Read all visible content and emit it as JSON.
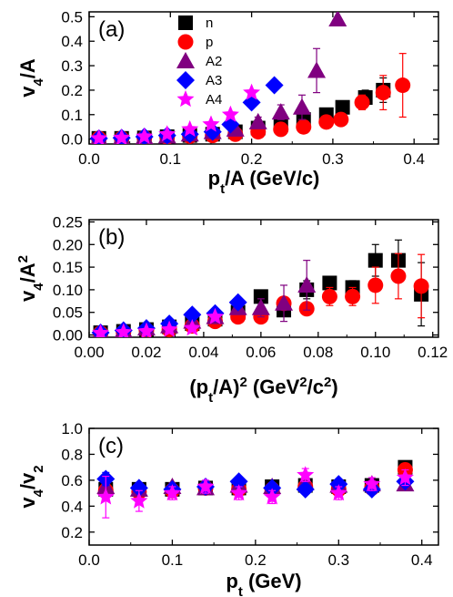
{
  "chart_data": [
    {
      "type": "scatter",
      "panel_label": "(a)",
      "ylabel": {
        "main": "v",
        "sub": "4",
        "rest": "/A"
      },
      "xlabel": {
        "main": "p",
        "sub": "t",
        "rest": "/A (GeV/c)"
      },
      "xlim": [
        0.0,
        0.43
      ],
      "ylim": [
        -0.02,
        0.52
      ],
      "xticks": [
        "0.0",
        "0.1",
        "0.2",
        "0.3",
        "0.4"
      ],
      "xtick_values": [
        0.0,
        0.1,
        0.2,
        0.3,
        0.4
      ],
      "yticks": [
        "0.0",
        "0.1",
        "0.2",
        "0.3",
        "0.4",
        "0.5"
      ],
      "ytick_values": [
        0.0,
        0.1,
        0.2,
        0.3,
        0.4,
        0.5
      ],
      "legend": [
        "n",
        "p",
        "A2",
        "A3",
        "A4"
      ],
      "legend_position": "top-center",
      "series": [
        {
          "name": "n",
          "marker": "square",
          "color": "#000000",
          "x": [
            0.012,
            0.04,
            0.068,
            0.096,
            0.124,
            0.152,
            0.18,
            0.208,
            0.236,
            0.264,
            0.292,
            0.312,
            0.34,
            0.362
          ],
          "y": [
            0.003,
            0.003,
            0.005,
            0.01,
            0.015,
            0.02,
            0.03,
            0.045,
            0.06,
            0.08,
            0.1,
            0.13,
            0.17,
            0.2
          ],
          "err": [
            0.0,
            0.0,
            0.0,
            0.0,
            0.0,
            0.0,
            0.0,
            0.0,
            0.0,
            0.01,
            0.02,
            0.02,
            0.03,
            0.05
          ]
        },
        {
          "name": "p",
          "marker": "circle",
          "color": "#ff0000",
          "x": [
            0.012,
            0.04,
            0.068,
            0.096,
            0.124,
            0.152,
            0.18,
            0.208,
            0.236,
            0.264,
            0.292,
            0.31,
            0.336,
            0.362,
            0.386
          ],
          "y": [
            0.003,
            0.003,
            0.005,
            0.008,
            0.012,
            0.015,
            0.02,
            0.03,
            0.04,
            0.05,
            0.07,
            0.08,
            0.15,
            0.19,
            0.22
          ],
          "err": [
            0.0,
            0.0,
            0.0,
            0.0,
            0.0,
            0.0,
            0.0,
            0.0,
            0.0,
            0.01,
            0.02,
            0.02,
            0.03,
            0.07,
            0.13
          ]
        },
        {
          "name": "A2",
          "marker": "triangle",
          "color": "#800080",
          "x": [
            0.012,
            0.04,
            0.068,
            0.096,
            0.124,
            0.152,
            0.18,
            0.208,
            0.236,
            0.262,
            0.28,
            0.306
          ],
          "y": [
            0.003,
            0.005,
            0.008,
            0.012,
            0.02,
            0.03,
            0.04,
            0.07,
            0.11,
            0.13,
            0.28,
            0.49
          ],
          "err": [
            0.0,
            0.0,
            0.0,
            0.0,
            0.0,
            0.0,
            0.0,
            0.02,
            0.03,
            0.05,
            0.09,
            0.0
          ]
        },
        {
          "name": "A3",
          "marker": "diamond",
          "color": "#0000ff",
          "x": [
            0.012,
            0.04,
            0.068,
            0.096,
            0.124,
            0.152,
            0.174,
            0.2,
            0.228
          ],
          "y": [
            0.003,
            0.005,
            0.01,
            0.015,
            0.02,
            0.03,
            0.06,
            0.15,
            0.22
          ],
          "err": [
            0.0,
            0.0,
            0.0,
            0.0,
            0.0,
            0.0,
            0.0,
            0.0,
            0.0
          ]
        },
        {
          "name": "A4",
          "marker": "star",
          "color": "#ff00ff",
          "x": [
            0.012,
            0.04,
            0.068,
            0.096,
            0.124,
            0.15,
            0.174,
            0.2
          ],
          "y": [
            0.003,
            0.005,
            0.01,
            0.02,
            0.04,
            0.06,
            0.1,
            0.19
          ],
          "err": [
            0.0,
            0.0,
            0.0,
            0.0,
            0.0,
            0.0,
            0.0,
            0.0
          ]
        }
      ]
    },
    {
      "type": "scatter",
      "panel_label": "(b)",
      "ylabel": {
        "main": "v",
        "sub": "4",
        "rest": "/A",
        "sup": "2"
      },
      "xlabel": {
        "pre": "(p",
        "sub": "t",
        "mid": "/A)",
        "sup": "2",
        "rest": " (GeV",
        "sup2": "2",
        "rest2": "/c",
        "sup3": "2",
        "end": ")"
      },
      "xlim": [
        0.0,
        0.122
      ],
      "ylim": [
        -0.005,
        0.255
      ],
      "xticks": [
        "0.00",
        "0.02",
        "0.04",
        "0.06",
        "0.08",
        "0.10",
        "0.12"
      ],
      "xtick_values": [
        0.0,
        0.02,
        0.04,
        0.06,
        0.08,
        0.1,
        0.12
      ],
      "yticks": [
        "0.00",
        "0.05",
        "0.10",
        "0.15",
        "0.20",
        "0.25"
      ],
      "ytick_values": [
        0.0,
        0.05,
        0.1,
        0.15,
        0.2,
        0.25
      ],
      "series": [
        {
          "name": "n",
          "marker": "square",
          "color": "#000000",
          "x": [
            0.004,
            0.012,
            0.02,
            0.028,
            0.036,
            0.044,
            0.052,
            0.06,
            0.068,
            0.076,
            0.084,
            0.092,
            0.1,
            0.108,
            0.116
          ],
          "y": [
            0.005,
            0.008,
            0.012,
            0.018,
            0.025,
            0.035,
            0.05,
            0.085,
            0.055,
            0.1,
            0.115,
            0.105,
            0.165,
            0.165,
            0.09
          ],
          "err": [
            0.0,
            0.0,
            0.0,
            0.0,
            0.0,
            0.0,
            0.0,
            0.0,
            0.01,
            0.02,
            0.01,
            0.015,
            0.035,
            0.045,
            0.07
          ]
        },
        {
          "name": "p",
          "marker": "circle",
          "color": "#ff0000",
          "x": [
            0.004,
            0.012,
            0.02,
            0.028,
            0.036,
            0.044,
            0.052,
            0.06,
            0.068,
            0.076,
            0.084,
            0.092,
            0.1,
            0.108,
            0.116
          ],
          "y": [
            0.004,
            0.006,
            0.01,
            0.012,
            0.02,
            0.03,
            0.04,
            0.04,
            0.07,
            0.058,
            0.085,
            0.085,
            0.11,
            0.13,
            0.108
          ],
          "err": [
            0.0,
            0.0,
            0.0,
            0.0,
            0.0,
            0.0,
            0.0,
            0.0,
            0.01,
            0.01,
            0.02,
            0.02,
            0.04,
            0.05,
            0.07
          ]
        },
        {
          "name": "A2",
          "marker": "triangle",
          "color": "#800080",
          "x": [
            0.004,
            0.012,
            0.02,
            0.028,
            0.036,
            0.044,
            0.052,
            0.06,
            0.068,
            0.076
          ],
          "y": [
            0.005,
            0.01,
            0.015,
            0.02,
            0.03,
            0.04,
            0.06,
            0.06,
            0.07,
            0.11
          ],
          "err": [
            0.0,
            0.0,
            0.0,
            0.0,
            0.0,
            0.0,
            0.0,
            0.02,
            0.04,
            0.055
          ]
        },
        {
          "name": "A3",
          "marker": "diamond",
          "color": "#0000ff",
          "x": [
            0.004,
            0.012,
            0.02,
            0.028,
            0.036,
            0.044,
            0.052
          ],
          "y": [
            0.005,
            0.01,
            0.015,
            0.025,
            0.045,
            0.048,
            0.072
          ],
          "err": [
            0.0,
            0.0,
            0.0,
            0.0,
            0.0,
            0.0,
            0.0
          ]
        },
        {
          "name": "A4",
          "marker": "star",
          "color": "#ff00ff",
          "x": [
            0.004,
            0.012,
            0.02,
            0.028,
            0.036,
            0.044
          ],
          "y": [
            0.004,
            0.006,
            0.008,
            0.012,
            0.015,
            0.04
          ],
          "err": [
            0.0,
            0.0,
            0.0,
            0.0,
            0.0,
            0.0
          ]
        }
      ]
    },
    {
      "type": "scatter",
      "panel_label": "(c)",
      "ylabel": {
        "main": "v",
        "sub": "4",
        "rest": "/v",
        "sub2": "2",
        "sup2": "2"
      },
      "xlabel": {
        "main": "p",
        "sub": "t",
        "rest": " (GeV)"
      },
      "xlim": [
        0.0,
        0.42
      ],
      "ylim": [
        0.1,
        1.0
      ],
      "xticks": [
        "0.0",
        "0.1",
        "0.2",
        "0.3",
        "0.4"
      ],
      "xtick_values": [
        0.0,
        0.1,
        0.2,
        0.3,
        0.4
      ],
      "yticks": [
        "0.2",
        "0.4",
        "0.6",
        "0.8",
        "1.0"
      ],
      "ytick_values": [
        0.2,
        0.4,
        0.6,
        0.8,
        1.0
      ],
      "series": [
        {
          "name": "n",
          "marker": "square",
          "color": "#000000",
          "x": [
            0.02,
            0.06,
            0.1,
            0.14,
            0.18,
            0.22,
            0.26,
            0.3,
            0.34,
            0.38
          ],
          "y": [
            0.53,
            0.53,
            0.53,
            0.54,
            0.54,
            0.55,
            0.56,
            0.55,
            0.56,
            0.7
          ],
          "err": [
            0.04,
            0.03,
            0.03,
            0.03,
            0.03,
            0.03,
            0.03,
            0.03,
            0.03,
            0.04
          ]
        },
        {
          "name": "p",
          "marker": "circle",
          "color": "#ff0000",
          "x": [
            0.02,
            0.06,
            0.1,
            0.14,
            0.18,
            0.22,
            0.26,
            0.3,
            0.34,
            0.38
          ],
          "y": [
            0.52,
            0.51,
            0.52,
            0.54,
            0.53,
            0.53,
            0.55,
            0.53,
            0.54,
            0.68
          ],
          "err": [
            0.04,
            0.03,
            0.03,
            0.03,
            0.03,
            0.03,
            0.03,
            0.03,
            0.03,
            0.05
          ]
        },
        {
          "name": "A2",
          "marker": "triangle",
          "color": "#800080",
          "x": [
            0.02,
            0.06,
            0.1,
            0.14,
            0.18,
            0.22,
            0.26,
            0.3,
            0.34,
            0.38
          ],
          "y": [
            0.55,
            0.53,
            0.55,
            0.54,
            0.56,
            0.55,
            0.58,
            0.56,
            0.57,
            0.57
          ],
          "err": [
            0.04,
            0.03,
            0.03,
            0.03,
            0.03,
            0.03,
            0.03,
            0.03,
            0.03,
            0.04
          ]
        },
        {
          "name": "A3",
          "marker": "diamond",
          "color": "#0000ff",
          "x": [
            0.02,
            0.06,
            0.1,
            0.14,
            0.18,
            0.22,
            0.26,
            0.3,
            0.34,
            0.38
          ],
          "y": [
            0.61,
            0.54,
            0.53,
            0.55,
            0.59,
            0.54,
            0.53,
            0.57,
            0.53,
            0.59
          ],
          "err": [
            0.05,
            0.03,
            0.03,
            0.03,
            0.03,
            0.03,
            0.03,
            0.03,
            0.03,
            0.04
          ]
        },
        {
          "name": "A4",
          "marker": "star",
          "color": "#ff00ff",
          "x": [
            0.02,
            0.06,
            0.1,
            0.14,
            0.18,
            0.22,
            0.26,
            0.3,
            0.34,
            0.38
          ],
          "y": [
            0.47,
            0.44,
            0.5,
            0.55,
            0.5,
            0.47,
            0.64,
            0.5,
            0.57,
            0.62
          ],
          "err": [
            0.16,
            0.08,
            0.05,
            0.05,
            0.05,
            0.05,
            0.05,
            0.05,
            0.05,
            0.06
          ]
        }
      ]
    }
  ]
}
